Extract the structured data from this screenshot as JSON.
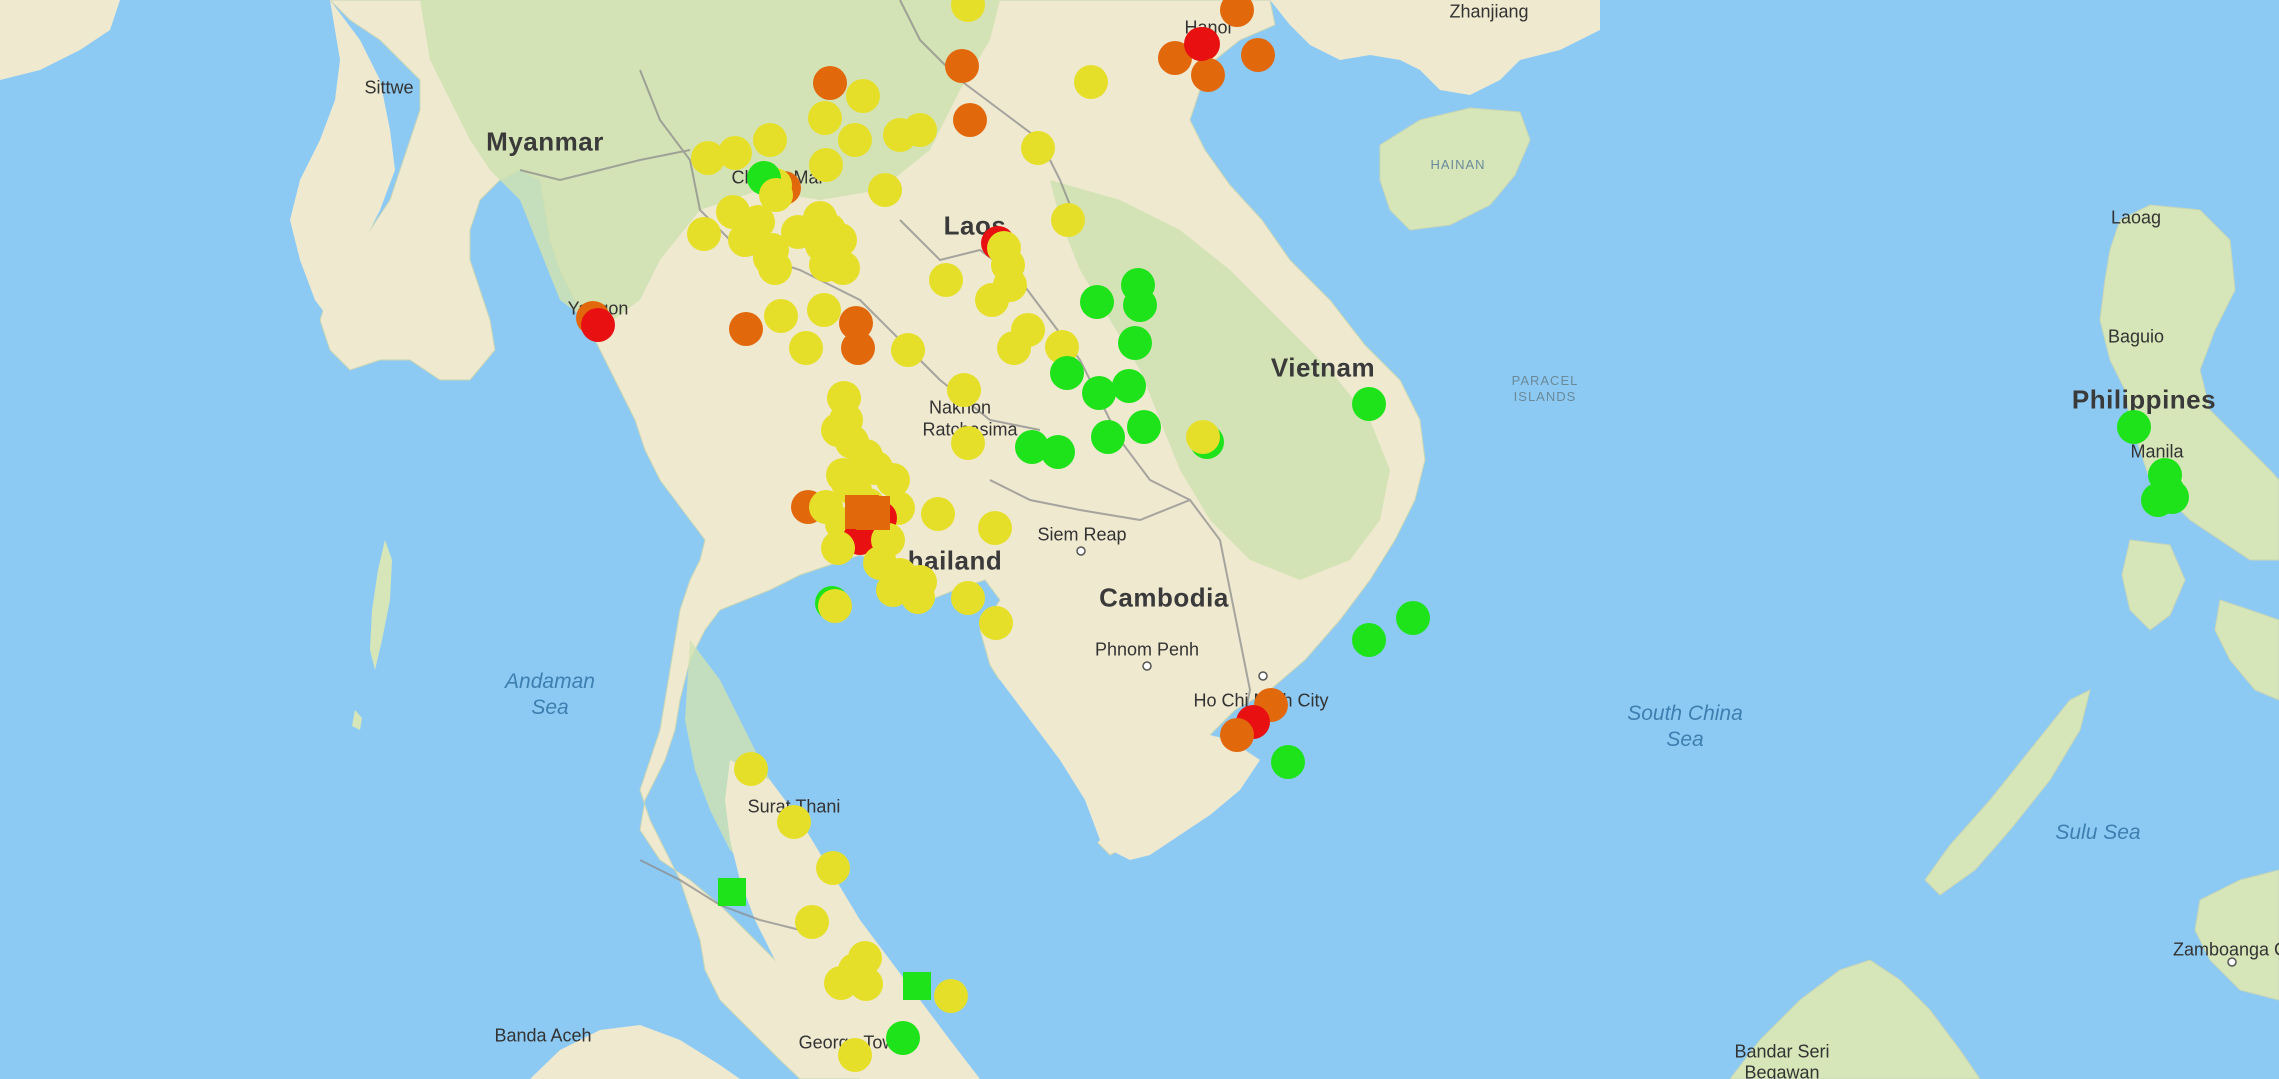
{
  "map": {
    "labels": {
      "countries": {
        "myanmar": "Myanmar",
        "laos": "Laos",
        "vietnam": "Vietnam",
        "cambodia": "Cambodia",
        "thailand": "hailand",
        "philippines": "Philippines"
      },
      "cities": {
        "sittwe": "Sittwe",
        "yangon": "Yangon",
        "chiang_mai": "Chiang Mai",
        "hanoi": "Hanoi",
        "zhanjiang": "Zhanjiang",
        "laoag": "Laoag",
        "baguio": "Baguio",
        "manila": "Manila",
        "nakhon_1": "Nakhon",
        "nakhon_2": "Ratchasima",
        "siem_reap": "Siem Reap",
        "phnom_penh": "Phnom Penh",
        "ho_chi_minh": "Ho Chi Minh City",
        "surat_thani": "Surat Thani",
        "banda_aceh": "Banda Aceh",
        "george_town": "George Town",
        "zamboanga": "Zamboanga C",
        "bandar": "Bandar Seri",
        "begawan": "Begawan"
      },
      "seas": {
        "andaman": "Andaman Sea",
        "south_china": "South China Sea",
        "sulu": "Sulu Sea"
      },
      "islands": {
        "hainan": "HAINAN",
        "paracel": "PARACEL ISLANDS"
      }
    },
    "colors": {
      "water": "#8dcaf3",
      "land": "#f3ecd5",
      "green_land": "#cfe3b1",
      "border": "#8c8c8c",
      "marker_red": "#e81010",
      "marker_orange": "#e2680c",
      "marker_yellow": "#e6df2a",
      "marker_green": "#1ee31a"
    },
    "icons": {
      "marker_circle": "circle-marker-icon",
      "marker_square": "square-marker-icon",
      "city_dot": "city-dot-icon"
    }
  }
}
